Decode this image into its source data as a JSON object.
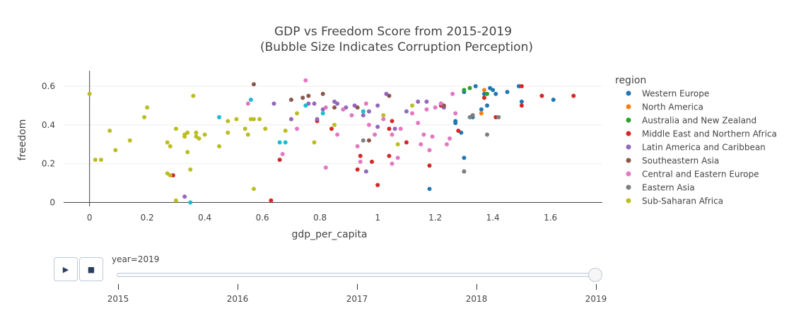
{
  "chart_data": {
    "type": "scatter",
    "title": "GDP vs Freedom Score from 2015-2019",
    "subtitle": "(Bubble Size Indicates Corruption Perception)",
    "xlabel": "gdp_per_capita",
    "ylabel": "freedom",
    "xlim": [
      -0.09,
      1.78
    ],
    "ylim": [
      -0.02,
      0.68
    ],
    "xticks": [
      0,
      0.2,
      0.4,
      0.6,
      0.8,
      1,
      1.2,
      1.4,
      1.6
    ],
    "xtick_labels": [
      "0",
      "0.2",
      "0.4",
      "0.6",
      "0.8",
      "1",
      "1.2",
      "1.4",
      "1.6"
    ],
    "yticks": [
      0,
      0.2,
      0.4,
      0.6
    ],
    "ytick_labels": [
      "0",
      "0.2",
      "0.4",
      "0.6"
    ],
    "grid": true,
    "legend_title": "region",
    "legend_position": "right",
    "series": [
      {
        "name": "Western Europe",
        "color": "#1f77b4",
        "x": [
          1.34,
          1.37,
          1.39,
          1.4,
          1.41,
          1.49,
          1.5,
          1.45,
          1.61,
          1.36,
          1.38,
          1.33,
          1.29,
          1.3,
          1.27,
          1.27,
          1.33,
          1.18,
          1.3
        ],
        "y": [
          0.6,
          0.56,
          0.59,
          0.58,
          0.56,
          0.6,
          0.52,
          0.57,
          0.53,
          0.48,
          0.5,
          0.44,
          0.36,
          0.57,
          0.42,
          0.41,
          0.45,
          0.07,
          0.23
        ]
      },
      {
        "name": "North America",
        "color": "#ff7f0e",
        "x": [
          1.37,
          1.36
        ],
        "y": [
          0.58,
          0.46
        ]
      },
      {
        "name": "Australia and New Zealand",
        "color": "#2ca02c",
        "x": [
          1.32,
          1.3,
          1.38
        ],
        "y": [
          0.59,
          0.58,
          0.56
        ]
      },
      {
        "name": "Middle East and Northern Africa",
        "color": "#d62728",
        "x": [
          1.68,
          1.57,
          1.5,
          1.5,
          1.41,
          1.37,
          1.22,
          1.28,
          1.18,
          1.1,
          1.05,
          1.04,
          0.98,
          0.94,
          0.93,
          1.0,
          0.63,
          0.66,
          0.84,
          0.79,
          1.04,
          0.29
        ],
        "y": [
          0.55,
          0.55,
          0.6,
          0.5,
          0.44,
          0.54,
          0.5,
          0.37,
          0.19,
          0.31,
          0.42,
          0.24,
          0.21,
          0.24,
          0.17,
          0.09,
          0.01,
          0.22,
          0.38,
          0.42,
          0.38,
          0.14
        ]
      },
      {
        "name": "Latin America and Caribbean",
        "color": "#9467bd",
        "x": [
          1.0,
          0.95,
          0.97,
          0.92,
          0.89,
          0.86,
          0.81,
          0.79,
          0.78,
          0.76,
          0.7,
          0.64,
          1.03,
          1.1,
          1.14,
          1.17,
          1.23,
          0.85,
          1.0,
          1.06,
          0.96,
          0.33
        ],
        "y": [
          0.5,
          0.45,
          0.47,
          0.5,
          0.49,
          0.51,
          0.48,
          0.43,
          0.51,
          0.51,
          0.43,
          0.51,
          0.56,
          0.47,
          0.52,
          0.52,
          0.49,
          0.52,
          0.39,
          0.38,
          0.16,
          0.03
        ]
      },
      {
        "name": "Southeastern Asia",
        "color": "#8c564b",
        "x": [
          0.57,
          0.7,
          0.74,
          0.76,
          0.81,
          0.93,
          1.04,
          0.97,
          1.23,
          1.22,
          0.85
        ],
        "y": [
          0.61,
          0.53,
          0.54,
          0.55,
          0.56,
          0.49,
          0.55,
          0.32,
          0.5,
          0.51,
          0.49
        ]
      },
      {
        "name": "Central and Eastern Europe",
        "color": "#e377c2",
        "x": [
          0.75,
          0.55,
          0.82,
          0.88,
          0.91,
          0.96,
          0.99,
          1.02,
          1.05,
          1.07,
          1.08,
          1.12,
          1.14,
          1.15,
          1.17,
          1.19,
          1.2,
          1.22,
          1.24,
          1.25,
          1.26,
          1.27,
          1.16,
          1.18,
          0.67,
          0.86,
          0.97,
          0.93,
          1.05,
          0.94,
          0.72,
          0.82
        ],
        "y": [
          0.63,
          0.51,
          0.49,
          0.48,
          0.45,
          0.51,
          0.35,
          0.43,
          0.35,
          0.23,
          0.38,
          0.46,
          0.41,
          0.3,
          0.48,
          0.34,
          0.49,
          0.51,
          0.3,
          0.33,
          0.56,
          0.46,
          0.35,
          0.27,
          0.25,
          0.35,
          0.4,
          0.29,
          0.2,
          0.21,
          0.38,
          0.18
        ]
      },
      {
        "name": "Eastern Asia",
        "color": "#7f7f7f",
        "x": [
          1.32,
          1.33,
          1.42,
          1.38,
          1.3,
          0.95,
          1.3
        ],
        "y": [
          0.44,
          0.45,
          0.44,
          0.35,
          0.16,
          0.32,
          0.16
        ]
      },
      {
        "name": "Sub-Saharan Africa",
        "color": "#bcbd22",
        "x": [
          0,
          0.02,
          0.04,
          0.07,
          0.09,
          0.14,
          0.19,
          0.2,
          0.27,
          0.28,
          0.27,
          0.3,
          0.33,
          0.34,
          0.35,
          0.36,
          0.37,
          0.38,
          0.4,
          0.45,
          0.48,
          0.51,
          0.54,
          0.55,
          0.57,
          0.57,
          0.59,
          0.61,
          0.68,
          0.72,
          0.78,
          0.85,
          1.02,
          1.07,
          1.12,
          0.48,
          0.34,
          0.37,
          0.33,
          0.3,
          0.28,
          0.56
        ],
        "y": [
          0.56,
          0.22,
          0.22,
          0.37,
          0.27,
          0.32,
          0.44,
          0.49,
          0.31,
          0.29,
          0.15,
          0.38,
          0.35,
          0.36,
          0.17,
          0.55,
          0.36,
          0.33,
          0.35,
          0.29,
          0.42,
          0.43,
          0.38,
          0.35,
          0.43,
          0.07,
          0.43,
          0.38,
          0.37,
          0.46,
          0.31,
          0.4,
          0.45,
          0.3,
          0.5,
          0.36,
          0.26,
          0.34,
          0.34,
          0.01,
          0.14,
          0.43
        ]
      },
      {
        "name": "",
        "color": "#17becf",
        "x": [
          0.45,
          0.56,
          0.66,
          0.75,
          0.81,
          0.95,
          0.35,
          0.68
        ],
        "y": [
          0.44,
          0.53,
          0.31,
          0.5,
          0.46,
          0.47,
          0.0,
          0.31
        ]
      }
    ]
  },
  "slider": {
    "label": "year=2019",
    "steps": [
      "2015",
      "2016",
      "2017",
      "2018",
      "2019"
    ],
    "current_index": 4,
    "play_icon": "▶",
    "stop_icon": "■"
  }
}
